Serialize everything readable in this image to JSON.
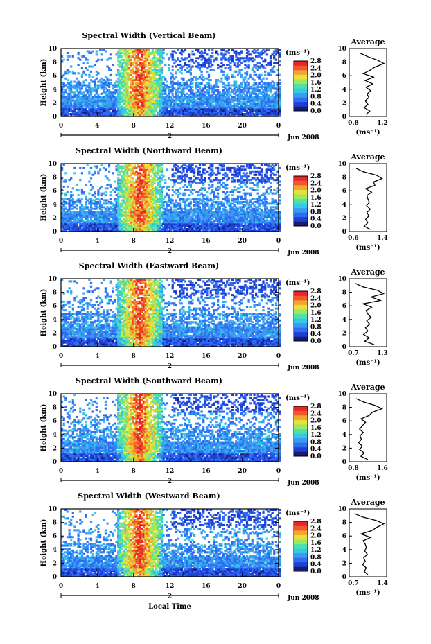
{
  "figure": {
    "xlabel": "Local Time",
    "date_label": "Jun 2008",
    "day_label": "2",
    "height_axis_label": "Height (km)",
    "colorbar_unit": "(ms⁻¹)",
    "average_title": "Average",
    "average_xlabel": "(ms⁻¹)",
    "colormap": [
      "#1b1b6e",
      "#1d3fd4",
      "#2f6cf2",
      "#3a9cf0",
      "#35c9e6",
      "#4fe0a8",
      "#9ee85f",
      "#e6e13a",
      "#f2a531",
      "#f05a2a",
      "#e8262a"
    ]
  },
  "chart_data": [
    {
      "type": "heatmap",
      "title": "Spectral Width (Vertical Beam)",
      "ylabel": "Height (km)",
      "xlabel": "",
      "x_ticks": [
        "0",
        "4",
        "8",
        "12",
        "16",
        "20",
        "0"
      ],
      "y_ticks": [
        "0",
        "2",
        "4",
        "6",
        "8",
        "10"
      ],
      "xlim": [
        0,
        24
      ],
      "ylim": [
        0,
        10
      ],
      "colorbar": {
        "ticks": [
          "0.0",
          "0.4",
          "0.8",
          "1.2",
          "1.6",
          "2.0",
          "2.4",
          "2.8"
        ],
        "range": [
          0,
          2.8
        ]
      },
      "average_profile": {
        "xlim": [
          0.8,
          1.2
        ],
        "x_ticks": [
          "0.8",
          "1.2"
        ],
        "y_ticks": [
          "0",
          "2",
          "4",
          "6",
          "8",
          "10"
        ],
        "heights": [
          0.3,
          0.8,
          1.3,
          1.8,
          2.3,
          2.8,
          3.3,
          3.8,
          4.3,
          4.8,
          5.3,
          5.8,
          6.3,
          6.8,
          7.3,
          7.8,
          8.3,
          8.8,
          9.3
        ],
        "values": [
          0.98,
          1.02,
          0.96,
          1.0,
          0.97,
          1.01,
          0.99,
          1.03,
          0.98,
          1.05,
          0.97,
          1.06,
          0.95,
          1.02,
          1.08,
          1.17,
          1.1,
          1.0,
          0.92
        ]
      }
    },
    {
      "type": "heatmap",
      "title": "Spectral Width (Northward Beam)",
      "ylabel": "Height (km)",
      "xlabel": "",
      "x_ticks": [
        "0",
        "4",
        "8",
        "12",
        "16",
        "20",
        "0"
      ],
      "y_ticks": [
        "0",
        "2",
        "4",
        "6",
        "8",
        "10"
      ],
      "xlim": [
        0,
        24
      ],
      "ylim": [
        0,
        10
      ],
      "colorbar": {
        "ticks": [
          "0.0",
          "0.4",
          "0.8",
          "1.2",
          "1.6",
          "2.0",
          "2.4",
          "2.8"
        ],
        "range": [
          0,
          2.8
        ]
      },
      "average_profile": {
        "xlim": [
          0.6,
          1.4
        ],
        "x_ticks": [
          "0.6",
          "1.4"
        ],
        "y_ticks": [
          "0",
          "2",
          "4",
          "6",
          "8",
          "10"
        ],
        "heights": [
          0.3,
          0.8,
          1.3,
          1.8,
          2.3,
          2.8,
          3.3,
          3.8,
          4.3,
          4.8,
          5.3,
          5.8,
          6.3,
          6.8,
          7.3,
          7.8,
          8.3,
          8.8,
          9.3
        ],
        "values": [
          1.05,
          0.92,
          1.0,
          0.95,
          1.02,
          0.98,
          1.05,
          0.97,
          1.03,
          1.0,
          0.98,
          1.08,
          0.95,
          1.15,
          1.12,
          1.3,
          1.18,
          0.9,
          0.75
        ]
      }
    },
    {
      "type": "heatmap",
      "title": "Spectral Width (Eastward Beam)",
      "ylabel": "Height (km)",
      "xlabel": "",
      "x_ticks": [
        "0",
        "4",
        "8",
        "12",
        "16",
        "20",
        "0"
      ],
      "y_ticks": [
        "0",
        "2",
        "4",
        "6",
        "8",
        "10"
      ],
      "xlim": [
        0,
        24
      ],
      "ylim": [
        0,
        10
      ],
      "colorbar": {
        "ticks": [
          "0.0",
          "0.4",
          "0.8",
          "1.2",
          "1.6",
          "2.0",
          "2.4",
          "2.8"
        ],
        "range": [
          0,
          2.8
        ]
      },
      "average_profile": {
        "xlim": [
          0.7,
          1.3
        ],
        "x_ticks": [
          "0.7",
          "1.3"
        ],
        "y_ticks": [
          "0",
          "2",
          "4",
          "6",
          "8",
          "10"
        ],
        "heights": [
          0.3,
          0.8,
          1.3,
          1.8,
          2.3,
          2.8,
          3.3,
          3.8,
          4.3,
          4.8,
          5.3,
          5.8,
          6.3,
          6.8,
          7.3,
          7.8,
          8.3,
          8.8,
          9.3
        ],
        "values": [
          1.1,
          0.95,
          1.02,
          0.93,
          1.0,
          0.96,
          1.03,
          0.98,
          1.05,
          1.0,
          0.97,
          1.06,
          0.92,
          1.2,
          1.05,
          1.25,
          1.15,
          0.92,
          0.8
        ]
      }
    },
    {
      "type": "heatmap",
      "title": "Spectral Width (Southward Beam)",
      "ylabel": "Height (km)",
      "xlabel": "",
      "x_ticks": [
        "0",
        "4",
        "8",
        "12",
        "16",
        "20",
        "0"
      ],
      "y_ticks": [
        "0",
        "2",
        "4",
        "6",
        "8",
        "10"
      ],
      "xlim": [
        0,
        24
      ],
      "ylim": [
        0,
        10
      ],
      "colorbar": {
        "ticks": [
          "0.0",
          "0.4",
          "0.8",
          "1.2",
          "1.6",
          "2.0",
          "2.4",
          "2.8"
        ],
        "range": [
          0,
          2.8
        ]
      },
      "average_profile": {
        "xlim": [
          0.8,
          1.6
        ],
        "x_ticks": [
          "0.8",
          "1.6"
        ],
        "y_ticks": [
          "0",
          "2",
          "4",
          "6",
          "8",
          "10"
        ],
        "heights": [
          0.3,
          0.8,
          1.3,
          1.8,
          2.3,
          2.8,
          3.3,
          3.8,
          4.3,
          4.8,
          5.3,
          5.8,
          6.3,
          6.8,
          7.3,
          7.8,
          8.3,
          8.8,
          9.3
        ],
        "values": [
          1.2,
          1.05,
          1.12,
          1.02,
          1.08,
          1.0,
          1.06,
          1.03,
          1.1,
          1.02,
          1.08,
          1.15,
          1.05,
          1.22,
          1.3,
          1.5,
          1.35,
          1.1,
          0.95
        ]
      }
    },
    {
      "type": "heatmap",
      "title": "Spectral Width (Westward Beam)",
      "ylabel": "Height (km)",
      "xlabel": "Local Time",
      "x_ticks": [
        "0",
        "4",
        "8",
        "12",
        "16",
        "20",
        "0"
      ],
      "y_ticks": [
        "0",
        "2",
        "4",
        "6",
        "8",
        "10"
      ],
      "xlim": [
        0,
        24
      ],
      "ylim": [
        0,
        10
      ],
      "colorbar": {
        "ticks": [
          "0.0",
          "0.4",
          "0.8",
          "1.2",
          "1.6",
          "2.0",
          "2.4",
          "2.8"
        ],
        "range": [
          0,
          2.8
        ]
      },
      "average_profile": {
        "xlim": [
          0.7,
          1.4
        ],
        "x_ticks": [
          "0.7",
          "1.4"
        ],
        "y_ticks": [
          "0",
          "2",
          "4",
          "6",
          "8",
          "10"
        ],
        "heights": [
          0.3,
          0.8,
          1.3,
          1.8,
          2.3,
          2.8,
          3.3,
          3.8,
          4.3,
          4.8,
          5.3,
          5.8,
          6.3,
          6.8,
          7.3,
          7.8,
          8.3,
          8.8,
          9.3
        ],
        "values": [
          1.05,
          0.98,
          1.02,
          0.95,
          1.0,
          0.97,
          1.04,
          0.99,
          1.02,
          1.0,
          0.96,
          1.1,
          0.92,
          1.12,
          1.22,
          1.35,
          1.2,
          0.95,
          0.8
        ]
      }
    }
  ]
}
